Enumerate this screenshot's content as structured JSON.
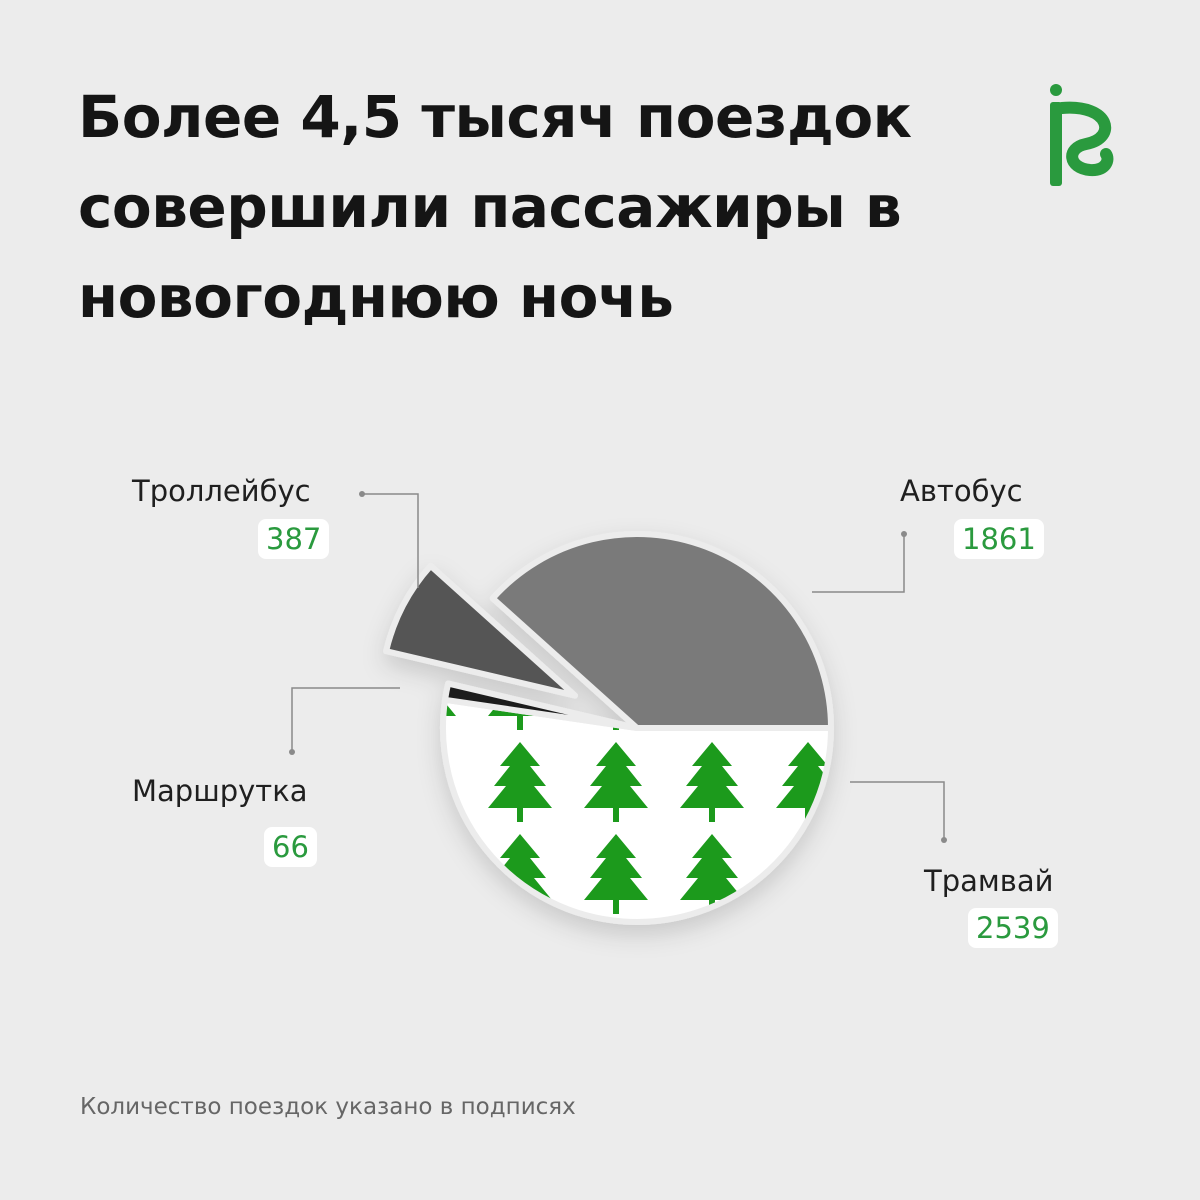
{
  "title_lines": [
    "Более 4,5 тысяч поездок",
    "совершили пассажиры в",
    "новогоднюю ночь"
  ],
  "footnote": "Количество поездок указано в подписях",
  "colors": {
    "background": "#ececec",
    "accent": "#2a9a3e",
    "tree": "#1a9a1a"
  },
  "chart_data": {
    "type": "pie",
    "title": "Более 4,5 тысяч поездок совершили пассажиры в новогоднюю ночь",
    "slices": [
      {
        "label": "Автобус",
        "value": 1861,
        "color": "#7a7a7a"
      },
      {
        "label": "Трамвай",
        "value": 2539,
        "color": "#ffffff",
        "pattern": "green-trees"
      },
      {
        "label": "Маршрутка",
        "value": 66,
        "color": "#1f1f1f"
      },
      {
        "label": "Троллейбус",
        "value": 387,
        "color": "#555555",
        "exploded": true
      }
    ]
  }
}
